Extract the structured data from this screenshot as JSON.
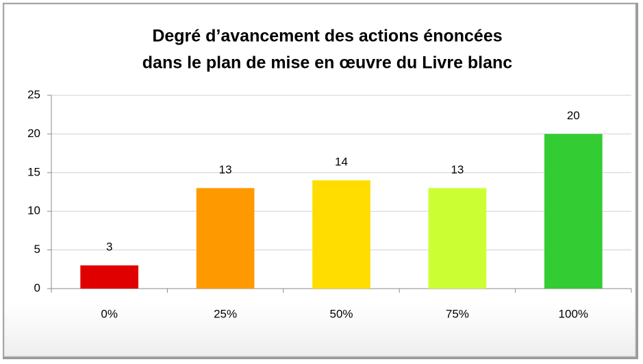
{
  "chart_data": {
    "type": "bar",
    "title": [
      "Degré d’avancement des actions énoncées",
      "dans le plan de mise en œuvre du Livre blanc"
    ],
    "categories": [
      "0%",
      "25%",
      "50%",
      "75%",
      "100%"
    ],
    "values": [
      3,
      13,
      14,
      13,
      20
    ],
    "colors": [
      "#e00000",
      "#ff9900",
      "#ffdd00",
      "#ccff33",
      "#33cc33"
    ],
    "ylim": [
      0,
      25
    ],
    "yticks": [
      0,
      5,
      10,
      15,
      20,
      25
    ],
    "grid": true
  }
}
